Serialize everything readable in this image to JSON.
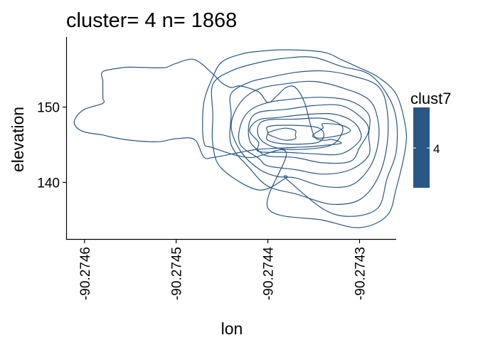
{
  "chart_data": {
    "type": "contour",
    "title": "cluster= 4 n= 1868",
    "xlabel": "lon",
    "ylabel": "elevation",
    "xlim": [
      -90.27462,
      -90.27426
    ],
    "ylim": [
      132.4,
      159.3
    ],
    "x_ticks": [
      {
        "value": -90.2746,
        "label": "-90.2746"
      },
      {
        "value": -90.2745,
        "label": "-90.2745"
      },
      {
        "value": -90.2744,
        "label": "-90.2744"
      },
      {
        "value": -90.2743,
        "label": "-90.2743"
      }
    ],
    "y_ticks": [
      {
        "value": 140,
        "label": "140"
      },
      {
        "value": 150,
        "label": "150"
      }
    ],
    "contour_color": "#2a5783",
    "legend": {
      "title": "clust7",
      "placement": "right",
      "color": "#2a5783",
      "value_label": "4"
    },
    "contours": [
      [
        [
          -90.27461,
          147.5
        ],
        [
          -90.27461,
          148.5
        ],
        [
          -90.2746,
          149.7
        ],
        [
          -90.27458,
          150.5
        ],
        [
          -90.27458,
          151.2
        ],
        [
          -90.27458,
          152.0
        ],
        [
          -90.27458,
          153.4
        ],
        [
          -90.27458,
          154.7
        ],
        [
          -90.27456,
          155.2
        ],
        [
          -90.27455,
          155.3
        ],
        [
          -90.27452,
          155.2
        ],
        [
          -90.27451,
          155.3
        ],
        [
          -90.2745,
          155.8
        ],
        [
          -90.27448,
          156.3
        ],
        [
          -90.27446,
          154.4
        ],
        [
          -90.27445,
          153.2
        ],
        [
          -90.27444,
          152.6
        ],
        [
          -90.27443,
          152.8
        ],
        [
          -90.27441,
          152.0
        ],
        [
          -90.2744,
          150.6
        ],
        [
          -90.27439,
          151.5
        ],
        [
          -90.27438,
          152.6
        ],
        [
          -90.27437,
          152.6
        ],
        [
          -90.27436,
          150.6
        ],
        [
          -90.27435,
          146.3
        ],
        [
          -90.27434,
          145.6
        ],
        [
          -90.27433,
          145.7
        ],
        [
          -90.27432,
          145.2
        ],
        [
          -90.27434,
          144.9
        ],
        [
          -90.27436,
          144.7
        ],
        [
          -90.27438,
          144.6
        ],
        [
          -90.27441,
          144.4
        ],
        [
          -90.27443,
          144.0
        ],
        [
          -90.27446,
          143.3
        ],
        [
          -90.27447,
          143.4
        ],
        [
          -90.27448,
          145.7
        ],
        [
          -90.2745,
          145.8
        ],
        [
          -90.27452,
          145.4
        ],
        [
          -90.27455,
          145.6
        ],
        [
          -90.27457,
          146.0
        ],
        [
          -90.27458,
          146.3
        ],
        [
          -90.2746,
          146.7
        ],
        [
          -90.27461,
          147.5
        ]
      ],
      [
        [
          -90.27438,
          144.0
        ],
        [
          -90.2744,
          136.6
        ],
        [
          -90.27434,
          135.0
        ],
        [
          -90.2743,
          134.0
        ],
        [
          -90.27427,
          135.6
        ],
        [
          -90.27426,
          139.2
        ],
        [
          -90.27425,
          144.5
        ],
        [
          -90.27425,
          147.5
        ],
        [
          -90.27426,
          151.7
        ],
        [
          -90.27428,
          154.0
        ],
        [
          -90.2743,
          155.2
        ],
        [
          -90.27432,
          156.3
        ],
        [
          -90.27434,
          157.3
        ],
        [
          -90.27438,
          157.6
        ],
        [
          -90.27441,
          157.4
        ],
        [
          -90.27443,
          157.0
        ],
        [
          -90.27445,
          156.0
        ],
        [
          -90.27446,
          154.0
        ],
        [
          -90.27447,
          150.4
        ],
        [
          -90.27447,
          145.5
        ],
        [
          -90.27446,
          144.6
        ],
        [
          -90.27442,
          143.3
        ],
        [
          -90.27438,
          144.0
        ]
      ],
      [
        [
          -90.27438,
          140.6
        ],
        [
          -90.27438,
          140.5
        ],
        [
          -90.27434,
          136.5
        ],
        [
          -90.27431,
          135.5
        ],
        [
          -90.27428,
          136.6
        ],
        [
          -90.27427,
          140.5
        ],
        [
          -90.27426,
          144.1
        ],
        [
          -90.27426,
          148.5
        ],
        [
          -90.27427,
          151.7
        ],
        [
          -90.27429,
          154.4
        ],
        [
          -90.27432,
          155.4
        ],
        [
          -90.27435,
          156.6
        ],
        [
          -90.27438,
          156.5
        ],
        [
          -90.27441,
          155.9
        ],
        [
          -90.27444,
          154.8
        ],
        [
          -90.27446,
          153.0
        ],
        [
          -90.27446,
          149.0
        ],
        [
          -90.27446,
          145.0
        ],
        [
          -90.27445,
          141.8
        ],
        [
          -90.27441,
          139.0
        ],
        [
          -90.27438,
          140.6
        ]
      ],
      [
        [
          -90.27437,
          138.5
        ],
        [
          -90.27436,
          138.1
        ],
        [
          -90.27433,
          137.1
        ],
        [
          -90.2743,
          137.7
        ],
        [
          -90.27428,
          140.6
        ],
        [
          -90.27427,
          145.0
        ],
        [
          -90.27427,
          149.7
        ],
        [
          -90.27428,
          152.8
        ],
        [
          -90.27431,
          154.2
        ],
        [
          -90.27434,
          154.8
        ],
        [
          -90.27437,
          154.6
        ],
        [
          -90.2744,
          153.9
        ],
        [
          -90.27442,
          153.3
        ],
        [
          -90.27444,
          151.8
        ],
        [
          -90.27444,
          149.0
        ],
        [
          -90.27444,
          145.0
        ],
        [
          -90.27442,
          141.9
        ],
        [
          -90.2744,
          139.5
        ],
        [
          -90.27437,
          138.5
        ]
      ],
      [
        [
          -90.27437,
          140.6
        ],
        [
          -90.27434,
          139.5
        ],
        [
          -90.27431,
          139.6
        ],
        [
          -90.27429,
          141.8
        ],
        [
          -90.27428,
          145.0
        ],
        [
          -90.27428,
          148.3
        ],
        [
          -90.27429,
          151.0
        ],
        [
          -90.27432,
          152.6
        ],
        [
          -90.27435,
          153.4
        ],
        [
          -90.27438,
          153.1
        ],
        [
          -90.27441,
          152.4
        ],
        [
          -90.27443,
          150.6
        ],
        [
          -90.27444,
          147.5
        ],
        [
          -90.27443,
          144.2
        ],
        [
          -90.27441,
          141.8
        ],
        [
          -90.27439,
          140.8
        ],
        [
          -90.27437,
          140.6
        ]
      ],
      [
        [
          -90.2744,
          142.2
        ],
        [
          -90.27437,
          141.7
        ],
        [
          -90.27434,
          141.1
        ],
        [
          -90.27431,
          141.7
        ],
        [
          -90.27429,
          143.6
        ],
        [
          -90.27429,
          146.2
        ],
        [
          -90.27429,
          149.0
        ],
        [
          -90.27431,
          150.8
        ],
        [
          -90.27434,
          151.3
        ],
        [
          -90.27437,
          151.1
        ],
        [
          -90.2744,
          150.6
        ],
        [
          -90.27442,
          149.5
        ],
        [
          -90.27443,
          147.5
        ],
        [
          -90.27443,
          145.0
        ],
        [
          -90.27441,
          143.2
        ],
        [
          -90.2744,
          142.2
        ]
      ],
      [
        [
          -90.2744,
          143.5
        ],
        [
          -90.27437,
          143.3
        ],
        [
          -90.27434,
          142.6
        ],
        [
          -90.27431,
          142.8
        ],
        [
          -90.2743,
          144.6
        ],
        [
          -90.27429,
          147.0
        ],
        [
          -90.2743,
          148.8
        ],
        [
          -90.27432,
          150.2
        ],
        [
          -90.27435,
          150.2
        ],
        [
          -90.27438,
          149.7
        ],
        [
          -90.27441,
          149.3
        ],
        [
          -90.27442,
          148.0
        ],
        [
          -90.27442,
          145.6
        ],
        [
          -90.27441,
          144.2
        ],
        [
          -90.2744,
          143.5
        ]
      ],
      [
        [
          -90.27441,
          144.1
        ],
        [
          -90.27438,
          144.0
        ],
        [
          -90.27435,
          143.8
        ],
        [
          -90.27432,
          143.8
        ],
        [
          -90.2743,
          145.5
        ],
        [
          -90.2743,
          147.0
        ],
        [
          -90.27431,
          148.3
        ],
        [
          -90.27433,
          149.1
        ],
        [
          -90.27436,
          149.0
        ],
        [
          -90.27439,
          148.6
        ],
        [
          -90.27441,
          148.3
        ],
        [
          -90.27442,
          146.9
        ],
        [
          -90.27441,
          145.3
        ],
        [
          -90.27441,
          144.1
        ]
      ],
      [
        [
          -90.2744,
          145.0
        ],
        [
          -90.27438,
          144.4
        ],
        [
          -90.27435,
          144.5
        ],
        [
          -90.27433,
          145.0
        ],
        [
          -90.27432,
          146.3
        ],
        [
          -90.27432,
          147.6
        ],
        [
          -90.27434,
          148.5
        ],
        [
          -90.27437,
          148.4
        ],
        [
          -90.2744,
          148.3
        ],
        [
          -90.27441,
          147.6
        ],
        [
          -90.27441,
          146.1
        ],
        [
          -90.2744,
          145.0
        ]
      ],
      [
        [
          -90.2744,
          145.6
        ],
        [
          -90.27438,
          145.1
        ],
        [
          -90.27435,
          145.2
        ],
        [
          -90.27434,
          145.8
        ],
        [
          -90.27434,
          146.8
        ],
        [
          -90.27435,
          147.4
        ],
        [
          -90.27438,
          147.6
        ],
        [
          -90.2744,
          147.4
        ],
        [
          -90.2744,
          146.6
        ],
        [
          -90.2744,
          145.6
        ]
      ],
      [
        [
          -90.27439,
          145.9
        ],
        [
          -90.27438,
          145.6
        ],
        [
          -90.27437,
          145.8
        ],
        [
          -90.27437,
          146.3
        ],
        [
          -90.27437,
          146.9
        ],
        [
          -90.27438,
          147.2
        ],
        [
          -90.27439,
          147.0
        ],
        [
          -90.2744,
          146.5
        ],
        [
          -90.27439,
          145.9
        ]
      ],
      [
        [
          -90.27435,
          146.0
        ],
        [
          -90.27434,
          145.9
        ],
        [
          -90.27432,
          146.3
        ],
        [
          -90.27431,
          146.9
        ],
        [
          -90.27432,
          147.6
        ],
        [
          -90.27434,
          147.8
        ],
        [
          -90.27434,
          147.2
        ],
        [
          -90.27435,
          146.4
        ],
        [
          -90.27435,
          146.0
        ]
      ]
    ]
  }
}
